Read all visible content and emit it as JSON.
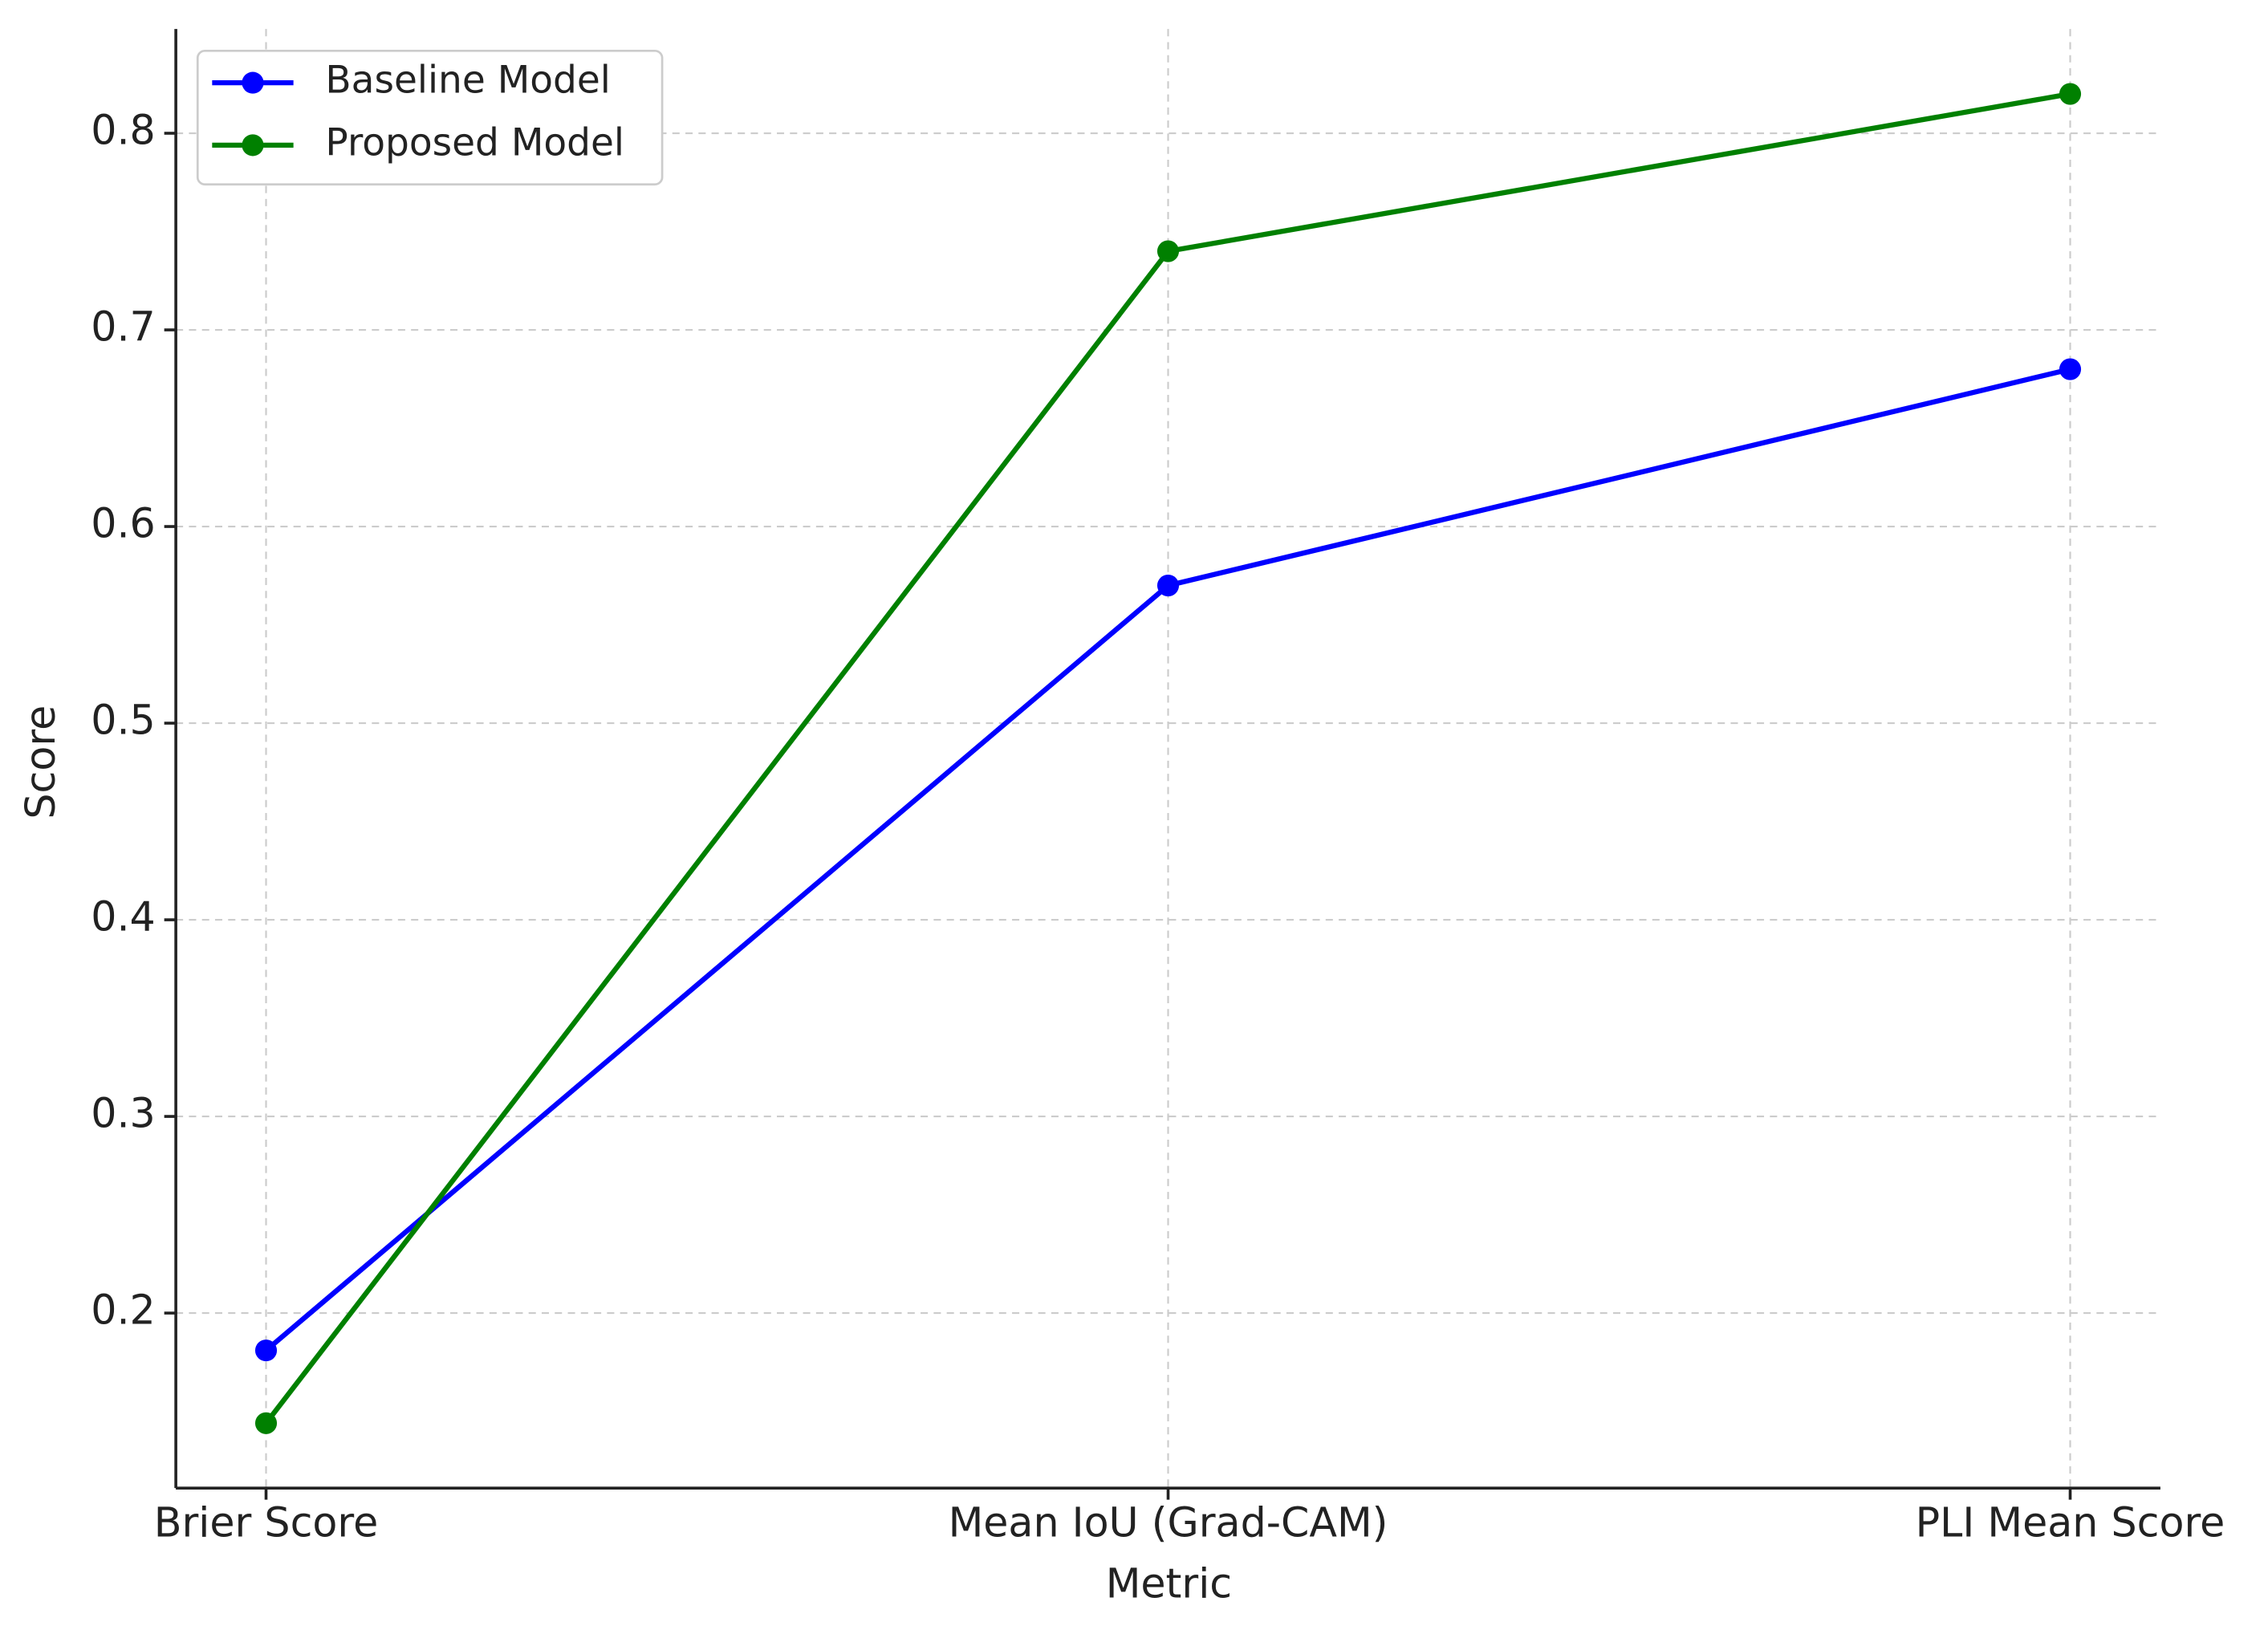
{
  "chart_data": {
    "type": "line",
    "categories": [
      "Brier Score",
      "Mean IoU (Grad-CAM)",
      "PLI Mean Score"
    ],
    "series": [
      {
        "name": "Baseline Model",
        "color": "#0000ff",
        "values": [
          0.181,
          0.57,
          0.68
        ]
      },
      {
        "name": "Proposed Model",
        "color": "#008000",
        "values": [
          0.144,
          0.74,
          0.82
        ]
      }
    ],
    "x_label": "Metric",
    "y_label": "Score",
    "ylim": [
      0.111,
      0.853
    ],
    "yticks": [
      0.2,
      0.3,
      0.4,
      0.5,
      0.6,
      0.7,
      0.8
    ],
    "grid": true,
    "legend": "upper-left"
  }
}
